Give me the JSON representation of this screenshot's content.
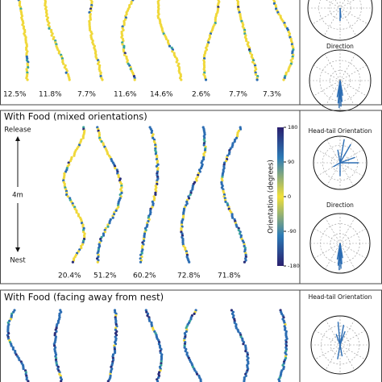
{
  "panels": [
    {
      "percentages": [
        "12.5%",
        "11.8%",
        "7.7%",
        "11.6%",
        "14.6%",
        "2.6%",
        "7.7%",
        "7.3%"
      ],
      "polar_titles": [
        "Direction"
      ]
    },
    {
      "title": "With Food (mixed orientations)",
      "percentages": [
        "20.4%",
        "51.2%",
        "60.2%",
        "72.8%",
        "71.8%"
      ],
      "polar_titles": [
        "Head-tail Orientation",
        "Direction"
      ],
      "axis": {
        "top": "Release",
        "bottom": "Nest",
        "length": "4m"
      },
      "colorbar": {
        "label": "Orientation (degrees)",
        "lim": [
          -180,
          180
        ],
        "ticks": [
          180,
          90,
          0,
          -90,
          -180
        ]
      }
    },
    {
      "title": "With Food (facing away from nest)",
      "polar_titles": [
        "Head-tail Orientation"
      ]
    }
  ]
}
